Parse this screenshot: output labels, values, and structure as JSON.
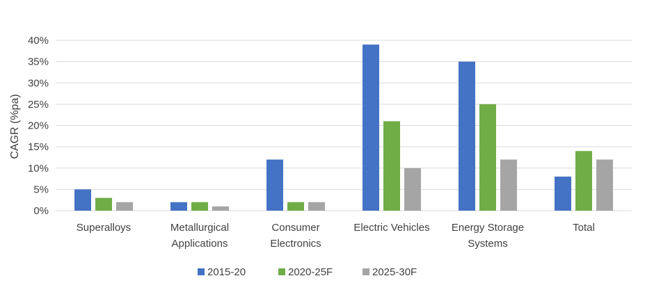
{
  "chart_data": {
    "type": "bar",
    "title": "",
    "xlabel": "",
    "ylabel": "CAGR (%pa)",
    "ylim": [
      0,
      40
    ],
    "yticks": [
      0,
      5,
      10,
      15,
      20,
      25,
      30,
      35,
      40
    ],
    "ytick_suffix": "%",
    "grid": true,
    "legend_position": "bottom",
    "categories": [
      [
        "Superalloys"
      ],
      [
        "Metallurgical",
        "Applications"
      ],
      [
        "Consumer",
        "Electronics"
      ],
      [
        "Electric Vehicles"
      ],
      [
        "Energy Storage",
        "Systems"
      ],
      [
        "Total"
      ]
    ],
    "series": [
      {
        "name": "2015-20",
        "color": "#4472C4",
        "values": [
          5,
          2,
          12,
          39,
          35,
          8
        ]
      },
      {
        "name": "2020-25F",
        "color": "#70AD47",
        "values": [
          3,
          2,
          2,
          21,
          25,
          14
        ]
      },
      {
        "name": "2025-30F",
        "color": "#A5A5A5",
        "values": [
          2,
          1,
          2,
          10,
          12,
          12
        ]
      }
    ]
  }
}
